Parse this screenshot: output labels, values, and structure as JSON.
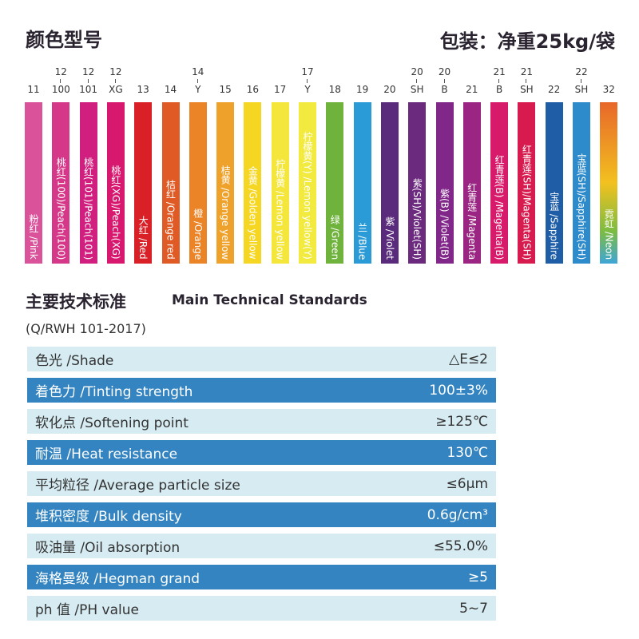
{
  "header": {
    "title": "颜色型号",
    "packaging": "包装：净重25kg/袋"
  },
  "colors": [
    {
      "top": "",
      "code": "11",
      "label": "粉红 /Pink",
      "color": "#d9529a"
    },
    {
      "top": "12",
      "code": "100",
      "label": "桃红(100)/Peach(100)",
      "color": "#d63889"
    },
    {
      "top": "12",
      "code": "101",
      "label": "桃红(101)/Peach(101)",
      "color": "#d11f7f"
    },
    {
      "top": "12",
      "code": "XG",
      "label": "桃红(XG)/Peach(XG)",
      "color": "#d8186f"
    },
    {
      "top": "",
      "code": "13",
      "label": "大红 /Red",
      "color": "#d92027"
    },
    {
      "top": "",
      "code": "14",
      "label": "桔红 /Orange red",
      "color": "#e05a25"
    },
    {
      "top": "14",
      "code": "Y",
      "label": "橙 /Orange",
      "color": "#ea8427"
    },
    {
      "top": "",
      "code": "15",
      "label": "桔黄 /Orange yellow",
      "color": "#efa22b"
    },
    {
      "top": "",
      "code": "16",
      "label": "金黄 /Golden yellow",
      "color": "#f5d623"
    },
    {
      "top": "",
      "code": "17",
      "label": "柠檬黄 /Lemon yellow",
      "color": "#f4e63a"
    },
    {
      "top": "17",
      "code": "Y",
      "label": "柠檬黄(Y) /Lemon yellow(Y)",
      "color": "#f2ea3e"
    },
    {
      "top": "",
      "code": "18",
      "label": "绿 /Green",
      "color": "#6fb23c"
    },
    {
      "top": "",
      "code": "19",
      "label": "兰 /Blue",
      "color": "#2a9bd7"
    },
    {
      "top": "",
      "code": "20",
      "label": "紫 /Violet",
      "color": "#5a2a7c"
    },
    {
      "top": "20",
      "code": "SH",
      "label": "紫(SH)/Violet(SH)",
      "color": "#6c2a7f"
    },
    {
      "top": "20",
      "code": "B",
      "label": "紫(B) /Violet(B)",
      "color": "#82278a"
    },
    {
      "top": "",
      "code": "21",
      "label": "红青莲 /Magenta",
      "color": "#9b2583"
    },
    {
      "top": "21",
      "code": "B",
      "label": "红青莲(B) /Magenta(B)",
      "color": "#d81a6a"
    },
    {
      "top": "21",
      "code": "SH",
      "label": "红青莲(SH)/Magenta(SH)",
      "color": "#d81b4e"
    },
    {
      "top": "",
      "code": "22",
      "label": "宝蓝 /Sapphire",
      "color": "#1f5ea6"
    },
    {
      "top": "22",
      "code": "SH",
      "label": "宝蓝(SH)/Sapphire(SH)",
      "color": "#2d8acb"
    },
    {
      "top": "",
      "code": "32",
      "label": "霓虹 /Neon",
      "color": "linear-gradient(#e8672a,#f2c11f 50%,#7cbc42 80%,#3ea6d8)"
    }
  ],
  "standards": {
    "title_cn": "主要技术标准",
    "title_en": "Main Technical Standards",
    "code": "(Q/RWH 101-2017)",
    "colors": {
      "light": "#d6ebf2",
      "dark": "#3384c0"
    },
    "rows": [
      {
        "name": "色光 /Shade",
        "value": "△E≤2"
      },
      {
        "name": "着色力 /Tinting strength",
        "value": "100±3%"
      },
      {
        "name": "软化点 /Softening point",
        "value": "≥125℃"
      },
      {
        "name": "耐温 /Heat resistance",
        "value": "130℃"
      },
      {
        "name": "平均粒径 /Average particle size",
        "value": "≤6μm"
      },
      {
        "name": "堆积密度 /Bulk density",
        "value": "0.6g/cm³"
      },
      {
        "name": "吸油量 /Oil absorption",
        "value": "≤55.0%"
      },
      {
        "name": "海格曼级 /Hegman grand",
        "value": "≥5"
      },
      {
        "name": "ph 值 /PH value",
        "value": "5~7"
      }
    ]
  }
}
